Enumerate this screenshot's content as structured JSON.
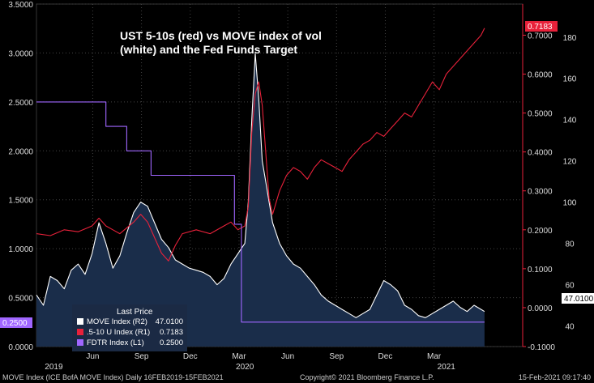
{
  "chart_data": {
    "type": "line",
    "title_line1": "UST 5-10s (red) vs MOVE index of vol",
    "title_line2": "(white) and the Fed Funds Target",
    "left_axis": {
      "ylim": [
        0,
        3.5
      ],
      "ticks": [
        "0.0000",
        "0.5000",
        "1.0000",
        "1.5000",
        "2.0000",
        "2.5000",
        "3.0000",
        "3.5000"
      ]
    },
    "r1_axis": {
      "ylim": [
        -0.1,
        0.78
      ],
      "ticks": [
        "-0.1000",
        "0.0000",
        "0.1000",
        "0.2000",
        "0.3000",
        "0.4000",
        "0.5000",
        "0.6000",
        "0.7000"
      ]
    },
    "r2_axis": {
      "ylim": [
        30,
        196
      ],
      "ticks": [
        "40",
        "60",
        "80",
        "100",
        "120",
        "140",
        "160",
        "180"
      ]
    },
    "x_axis": {
      "month_ticks": [
        "Jun",
        "Sep",
        "Dec",
        "Mar",
        "Jun",
        "Sep",
        "Dec",
        "Mar"
      ],
      "year_labels": [
        "2019",
        "2020",
        "2021"
      ]
    },
    "legend": {
      "title": "Last Price",
      "items": [
        {
          "label": "MOVE Index  (R2)",
          "value": "47.0100",
          "color": "#ffffff"
        },
        {
          "label": ".5-10 U Index  (R1)",
          "value": "0.7183",
          "color": "#e8213a"
        },
        {
          "label": "FDTR Index  (L1)",
          "value": "0.2500",
          "color": "#a066ff"
        }
      ]
    },
    "last_price_labels": {
      "red": "0.7183",
      "white": "47.0100",
      "purple": "0.2500"
    },
    "series": [
      {
        "name": "MOVE Index",
        "axis": "R2",
        "color": "#ffffff",
        "points": [
          [
            0,
            55
          ],
          [
            2,
            50
          ],
          [
            4,
            64
          ],
          [
            6,
            62
          ],
          [
            8,
            58
          ],
          [
            10,
            67
          ],
          [
            12,
            70
          ],
          [
            14,
            65
          ],
          [
            16,
            75
          ],
          [
            18,
            90
          ],
          [
            20,
            80
          ],
          [
            22,
            68
          ],
          [
            24,
            74
          ],
          [
            26,
            85
          ],
          [
            28,
            95
          ],
          [
            30,
            100
          ],
          [
            32,
            98
          ],
          [
            34,
            90
          ],
          [
            36,
            82
          ],
          [
            38,
            78
          ],
          [
            40,
            72
          ],
          [
            42,
            70
          ],
          [
            44,
            68
          ],
          [
            46,
            67
          ],
          [
            48,
            66
          ],
          [
            50,
            64
          ],
          [
            52,
            60
          ],
          [
            54,
            63
          ],
          [
            56,
            70
          ],
          [
            58,
            75
          ],
          [
            60,
            80
          ],
          [
            61,
            100
          ],
          [
            62,
            140
          ],
          [
            63,
            172
          ],
          [
            64,
            150
          ],
          [
            65,
            120
          ],
          [
            66,
            110
          ],
          [
            67,
            100
          ],
          [
            68,
            90
          ],
          [
            70,
            80
          ],
          [
            72,
            74
          ],
          [
            74,
            70
          ],
          [
            76,
            68
          ],
          [
            78,
            64
          ],
          [
            80,
            60
          ],
          [
            82,
            55
          ],
          [
            84,
            52
          ],
          [
            86,
            50
          ],
          [
            88,
            48
          ],
          [
            90,
            46
          ],
          [
            92,
            44
          ],
          [
            94,
            46
          ],
          [
            96,
            48
          ],
          [
            98,
            55
          ],
          [
            100,
            62
          ],
          [
            102,
            60
          ],
          [
            104,
            57
          ],
          [
            106,
            50
          ],
          [
            108,
            48
          ],
          [
            110,
            45
          ],
          [
            112,
            44
          ],
          [
            114,
            46
          ],
          [
            116,
            48
          ],
          [
            118,
            50
          ],
          [
            120,
            52
          ],
          [
            122,
            49
          ],
          [
            124,
            47
          ],
          [
            126,
            50
          ],
          [
            128,
            48
          ],
          [
            129,
            47.01
          ]
        ]
      },
      {
        "name": ".5-10 U Index",
        "axis": "R1",
        "color": "#e8213a",
        "points": [
          [
            0,
            0.19
          ],
          [
            4,
            0.185
          ],
          [
            8,
            0.2
          ],
          [
            12,
            0.195
          ],
          [
            16,
            0.21
          ],
          [
            18,
            0.23
          ],
          [
            20,
            0.21
          ],
          [
            22,
            0.2
          ],
          [
            24,
            0.19
          ],
          [
            28,
            0.22
          ],
          [
            30,
            0.24
          ],
          [
            32,
            0.22
          ],
          [
            34,
            0.18
          ],
          [
            36,
            0.14
          ],
          [
            38,
            0.12
          ],
          [
            40,
            0.16
          ],
          [
            42,
            0.19
          ],
          [
            46,
            0.2
          ],
          [
            50,
            0.19
          ],
          [
            54,
            0.21
          ],
          [
            56,
            0.22
          ],
          [
            58,
            0.2
          ],
          [
            60,
            0.21
          ],
          [
            61,
            0.26
          ],
          [
            62,
            0.45
          ],
          [
            63,
            0.55
          ],
          [
            64,
            0.58
          ],
          [
            65,
            0.52
          ],
          [
            66,
            0.4
          ],
          [
            67,
            0.28
          ],
          [
            68,
            0.24
          ],
          [
            70,
            0.3
          ],
          [
            72,
            0.34
          ],
          [
            74,
            0.36
          ],
          [
            76,
            0.35
          ],
          [
            78,
            0.33
          ],
          [
            80,
            0.36
          ],
          [
            82,
            0.38
          ],
          [
            84,
            0.37
          ],
          [
            86,
            0.36
          ],
          [
            88,
            0.35
          ],
          [
            90,
            0.38
          ],
          [
            92,
            0.4
          ],
          [
            94,
            0.42
          ],
          [
            96,
            0.43
          ],
          [
            98,
            0.45
          ],
          [
            100,
            0.44
          ],
          [
            102,
            0.46
          ],
          [
            104,
            0.48
          ],
          [
            106,
            0.5
          ],
          [
            108,
            0.49
          ],
          [
            110,
            0.52
          ],
          [
            112,
            0.55
          ],
          [
            114,
            0.58
          ],
          [
            116,
            0.56
          ],
          [
            118,
            0.6
          ],
          [
            120,
            0.62
          ],
          [
            122,
            0.64
          ],
          [
            124,
            0.66
          ],
          [
            126,
            0.68
          ],
          [
            128,
            0.7
          ],
          [
            129,
            0.7183
          ]
        ]
      },
      {
        "name": "FDTR Index",
        "axis": "L1",
        "color": "#a066ff",
        "points": [
          [
            0,
            2.5
          ],
          [
            20,
            2.5
          ],
          [
            20,
            2.25
          ],
          [
            26,
            2.25
          ],
          [
            26,
            2.0
          ],
          [
            33,
            2.0
          ],
          [
            33,
            1.75
          ],
          [
            57,
            1.75
          ],
          [
            57,
            1.25
          ],
          [
            59,
            1.25
          ],
          [
            59,
            0.25
          ],
          [
            129,
            0.25
          ]
        ]
      }
    ],
    "footer": {
      "left": "MOVE Index (ICE BofA MOVE Index)  Daily 16FEB2019-15FEB2021",
      "center": "Copyright© 2021 Bloomberg Finance L.P.",
      "right": "15-Feb-2021 09:17:40"
    }
  }
}
